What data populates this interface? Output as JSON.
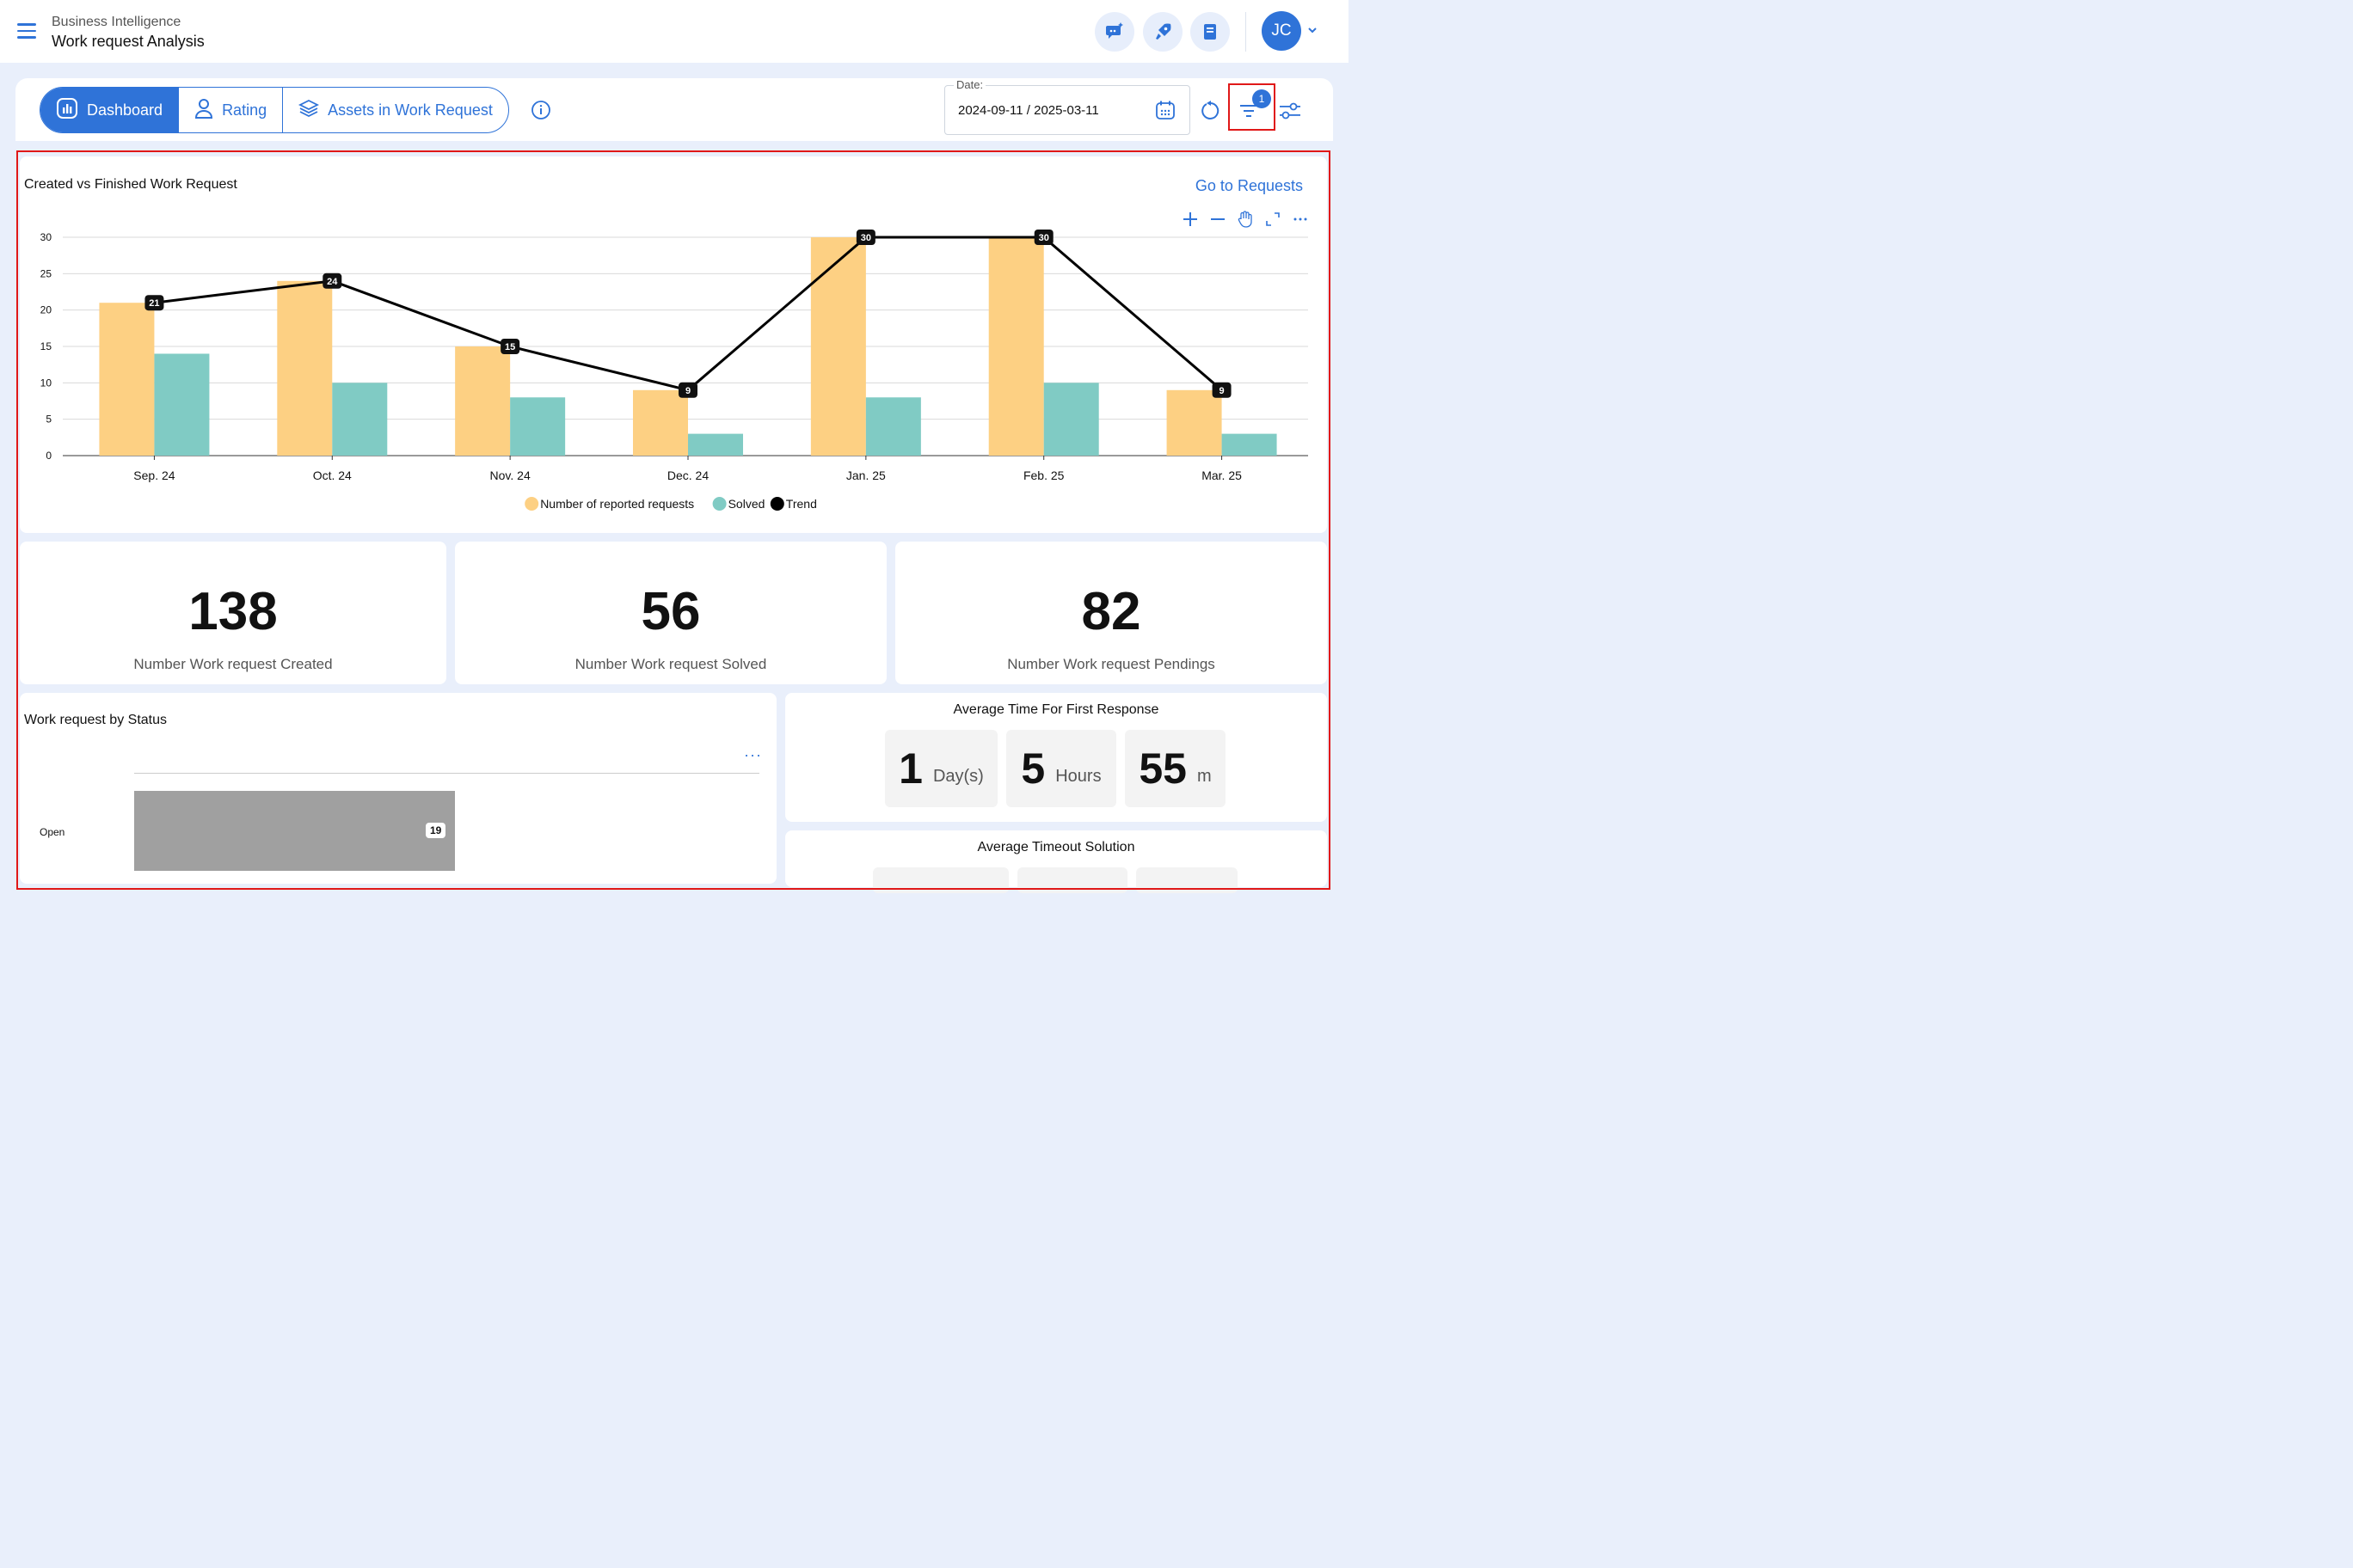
{
  "header": {
    "breadcrumb": "Business Intelligence",
    "title": "Work request Analysis",
    "avatar_initials": "JC",
    "icons": [
      "chat-sparkle-icon",
      "rocket-icon",
      "book-icon"
    ]
  },
  "tabs": [
    {
      "label": "Dashboard",
      "icon": "chart-icon",
      "active": true
    },
    {
      "label": "Rating",
      "icon": "person-icon",
      "active": false
    },
    {
      "label": "Assets in Work Request",
      "icon": "layers-icon",
      "active": false
    }
  ],
  "filters": {
    "date_label": "Date:",
    "date_value": "2024-09-11 / 2025-03-11",
    "filter_badge": "1"
  },
  "chart_card": {
    "title": "Created vs Finished Work Request",
    "link": "Go to Requests"
  },
  "chart_data": {
    "type": "bar",
    "categories": [
      "Sep. 24",
      "Oct. 24",
      "Nov. 24",
      "Dec. 24",
      "Jan. 25",
      "Feb. 25",
      "Mar. 25"
    ],
    "series": [
      {
        "name": "Number of reported requests",
        "type": "bar",
        "color": "#fdd083",
        "values": [
          21,
          24,
          15,
          9,
          30,
          30,
          9
        ]
      },
      {
        "name": "Solved",
        "type": "bar",
        "color": "#80cbc4",
        "values": [
          14,
          10,
          8,
          3,
          8,
          10,
          3
        ]
      },
      {
        "name": "Trend",
        "type": "line",
        "color": "#000000",
        "values": [
          21,
          24,
          15,
          9,
          30,
          30,
          9
        ]
      }
    ],
    "ylim": [
      0,
      30
    ],
    "yticks": [
      0,
      5,
      10,
      15,
      20,
      25,
      30
    ],
    "grid": true,
    "legend": "bottom-center"
  },
  "kpis": [
    {
      "value": "138",
      "label": "Number Work request Created"
    },
    {
      "value": "56",
      "label": "Number Work request Solved"
    },
    {
      "value": "82",
      "label": "Number Work request Pendings"
    }
  ],
  "status_card": {
    "title": "Work request by Status",
    "more": "···",
    "chart_data": {
      "type": "bar",
      "orientation": "horizontal",
      "categories": [
        "Open"
      ],
      "values": [
        19
      ],
      "color": "#a0a0a0"
    }
  },
  "first_response": {
    "title": "Average Time For First Response",
    "days": "1",
    "days_unit": "Day(s)",
    "hours": "5",
    "hours_unit": "Hours",
    "minutes": "55",
    "minutes_unit": "m"
  },
  "timeout": {
    "title": "Average Timeout Solution"
  }
}
